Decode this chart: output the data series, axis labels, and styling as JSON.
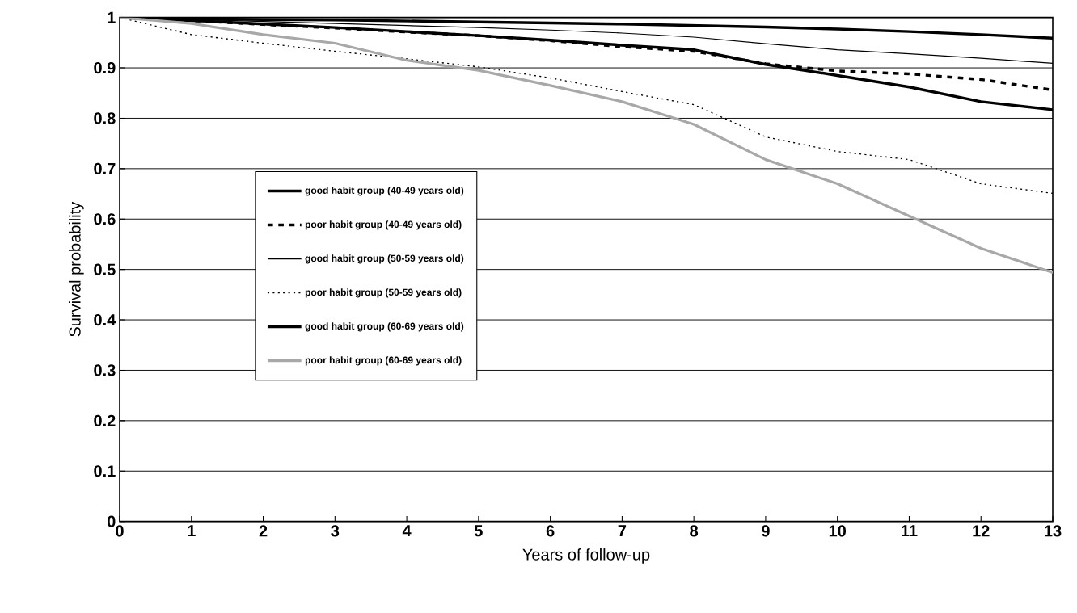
{
  "chart_data": {
    "type": "line",
    "xlabel": "Years of follow-up",
    "ylabel": "Survival probability",
    "x": [
      0,
      1,
      2,
      3,
      4,
      5,
      6,
      7,
      8,
      9,
      10,
      11,
      12,
      13
    ],
    "series": [
      {
        "name": "good habit group (40-49 years old)",
        "color": "#000000",
        "line_style": "solid",
        "values": [
          1,
          0.998,
          0.996,
          0.995,
          0.993,
          0.991,
          0.989,
          0.987,
          0.984,
          0.981,
          0.977,
          0.972,
          0.966,
          0.959
        ]
      },
      {
        "name": "poor habit group (40-49 years old)",
        "color": "#000000",
        "line_style": "dashed",
        "values": [
          1,
          0.994,
          0.986,
          0.979,
          0.971,
          0.964,
          0.954,
          0.942,
          0.933,
          0.908,
          0.894,
          0.888,
          0.877,
          0.856
        ]
      },
      {
        "name": "good habit group (50-59 years old)",
        "color": "#000000",
        "line_style": "solid",
        "values": [
          1,
          0.996,
          0.992,
          0.988,
          0.984,
          0.98,
          0.975,
          0.969,
          0.961,
          0.948,
          0.936,
          0.928,
          0.919,
          0.909
        ]
      },
      {
        "name": "poor habit group (50-59 years old)",
        "color": "#000000",
        "line_style": "dotted",
        "values": [
          1,
          0.966,
          0.949,
          0.933,
          0.918,
          0.902,
          0.88,
          0.853,
          0.827,
          0.763,
          0.734,
          0.718,
          0.67,
          0.651
        ]
      },
      {
        "name": "good habit group (60-69 years old)",
        "color": "#000000",
        "line_style": "solid",
        "values": [
          1,
          0.994,
          0.987,
          0.98,
          0.972,
          0.964,
          0.955,
          0.945,
          0.936,
          0.907,
          0.885,
          0.862,
          0.833,
          0.817
        ]
      },
      {
        "name": "poor habit group (60-69 years old)",
        "color": "#a8a8a8",
        "line_style": "solid",
        "values": [
          1,
          0.988,
          0.966,
          0.949,
          0.915,
          0.895,
          0.865,
          0.833,
          0.788,
          0.718,
          0.67,
          0.606,
          0.542,
          0.494
        ]
      }
    ],
    "xlim": [
      0,
      13
    ],
    "ylim": [
      0,
      1
    ],
    "xticks": [
      0,
      1,
      2,
      3,
      4,
      5,
      6,
      7,
      8,
      9,
      10,
      11,
      12,
      13
    ],
    "yticks": [
      0,
      0.1,
      0.2,
      0.3,
      0.4,
      0.5,
      0.6,
      0.7,
      0.8,
      0.9,
      1
    ],
    "grid": "y",
    "legend": "left",
    "marker": "none"
  }
}
